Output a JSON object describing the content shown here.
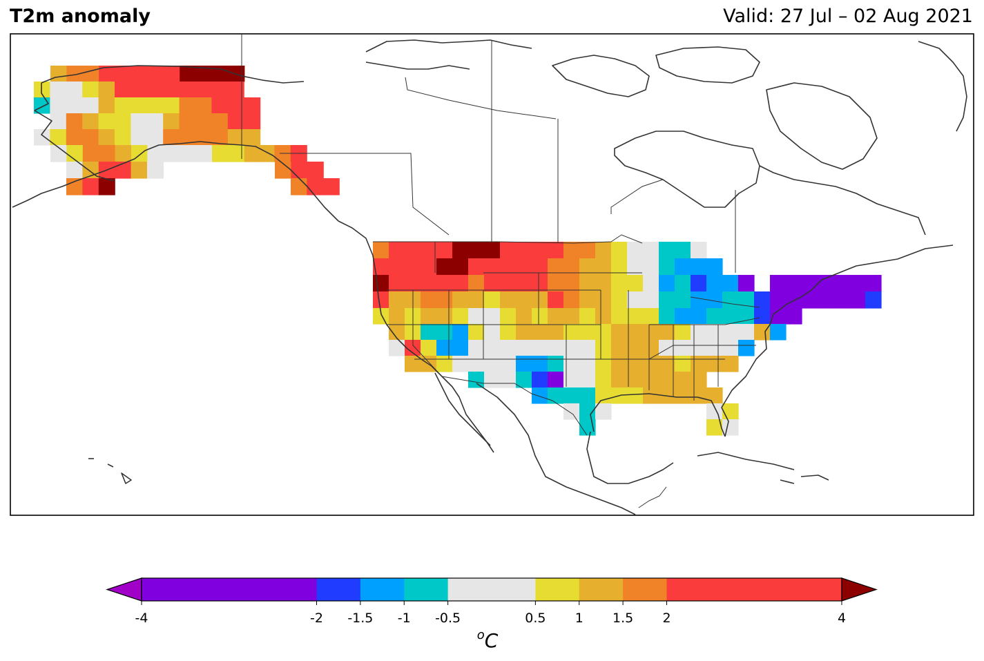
{
  "header": {
    "title": "T2m anomaly",
    "valid": "Valid: 27 Jul – 02 Aug 2021"
  },
  "colorbar": {
    "unit_sup": "o",
    "unit": "C",
    "ticks": [
      "-4",
      "-2",
      "-1.5",
      "-1",
      "-0.5",
      "0.5",
      "1",
      "1.5",
      "2",
      "4"
    ],
    "bounds": [
      -4,
      -2,
      -1.5,
      -1,
      -0.5,
      0.5,
      1,
      1.5,
      2,
      4
    ],
    "colors": [
      "#8000e0",
      "#1f3cff",
      "#00a0ff",
      "#00c8c8",
      "#e6e6e6",
      "#e6dc32",
      "#e6af2d",
      "#f08228",
      "#fa3c3c"
    ],
    "under_color": "#a000c8",
    "over_color": "#8c0000"
  },
  "legend_palette": {
    "vd": "#8000e0",
    "bl": "#1f3cff",
    "lb": "#00a0ff",
    "cy": "#00c8c8",
    "gr": "#e6e6e6",
    "ye": "#e6dc32",
    "go": "#e6af2d",
    "or": "#f08228",
    "re": "#fa3c3c",
    "dr": "#8c0000"
  }
}
